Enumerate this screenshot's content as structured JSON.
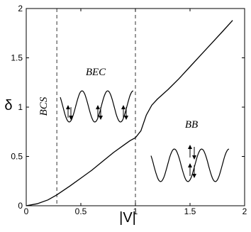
{
  "chart_data": {
    "type": "line",
    "xlabel": "|V|",
    "ylabel": "δ",
    "x": [
      0,
      0.1,
      0.2,
      0.28,
      0.4,
      0.5,
      0.6,
      0.7,
      0.8,
      0.9,
      0.95,
      1.0,
      1.05,
      1.1,
      1.15,
      1.2,
      1.3,
      1.4,
      1.5,
      1.6,
      1.7,
      1.8,
      1.89
    ],
    "values": [
      0,
      0.02,
      0.06,
      0.11,
      0.2,
      0.28,
      0.36,
      0.45,
      0.54,
      0.62,
      0.66,
      0.69,
      0.76,
      0.92,
      1.02,
      1.08,
      1.18,
      1.29,
      1.41,
      1.53,
      1.65,
      1.77,
      1.88
    ],
    "color": "#000000",
    "vlines": [
      0.28,
      1
    ],
    "annotations": [
      "BCS",
      "BEC",
      "BB"
    ],
    "xlim": [
      0,
      2
    ],
    "xticks": [
      0,
      0.5,
      1,
      1.5,
      2
    ],
    "ylim": [
      0,
      2
    ],
    "yticks": [
      0,
      0.5,
      1,
      1.5,
      2
    ]
  }
}
